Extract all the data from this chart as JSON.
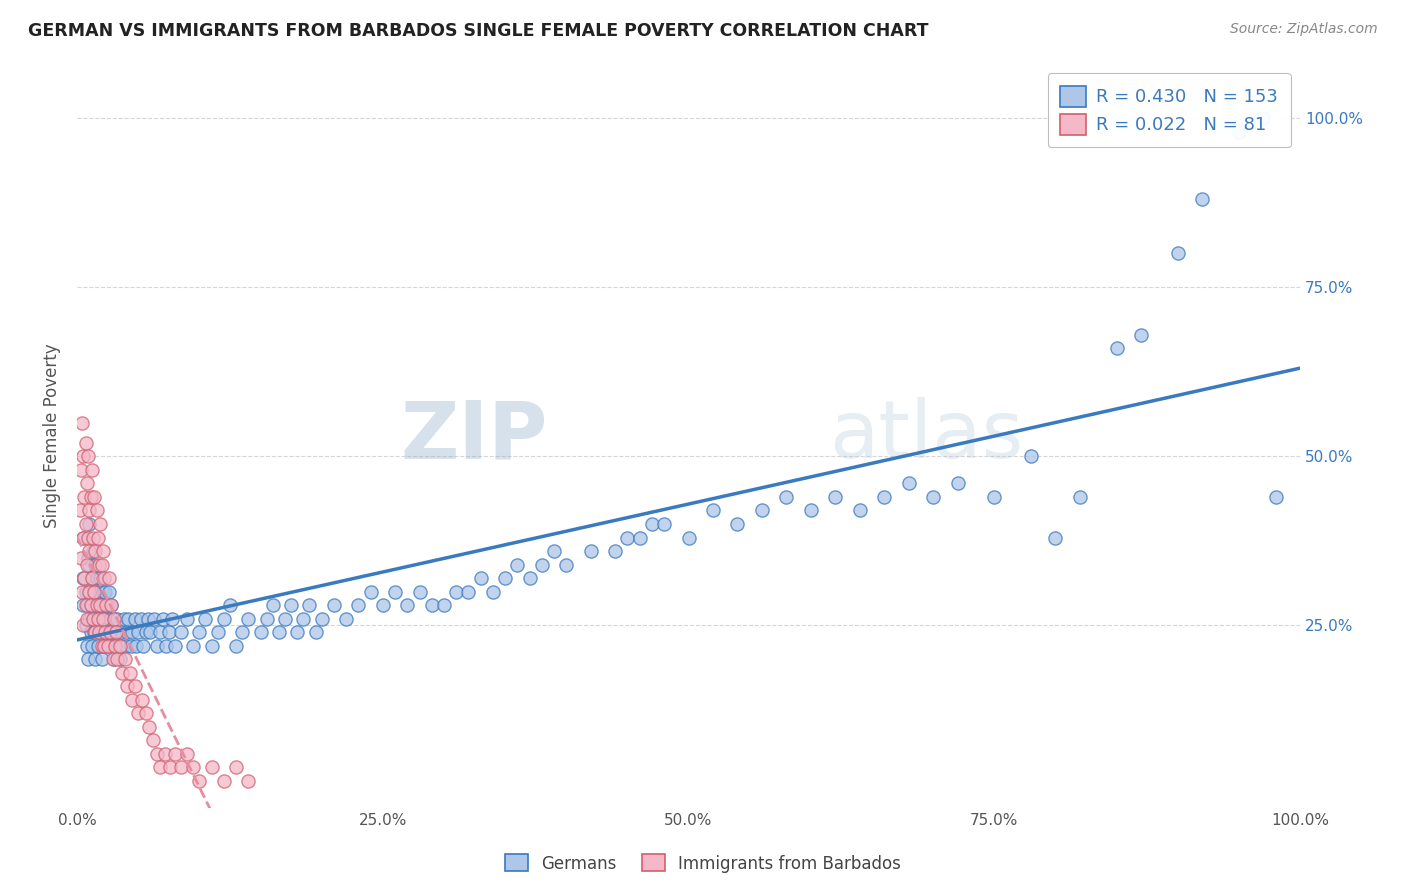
{
  "title": "GERMAN VS IMMIGRANTS FROM BARBADOS SINGLE FEMALE POVERTY CORRELATION CHART",
  "source": "Source: ZipAtlas.com",
  "ylabel": "Single Female Poverty",
  "xlim": [
    0.0,
    1.0
  ],
  "ylim": [
    -0.02,
    1.08
  ],
  "xtick_labels": [
    "0.0%",
    "25.0%",
    "50.0%",
    "75.0%",
    "100.0%"
  ],
  "xtick_positions": [
    0.0,
    0.25,
    0.5,
    0.75,
    1.0
  ],
  "ytick_labels": [
    "25.0%",
    "50.0%",
    "75.0%",
    "100.0%"
  ],
  "ytick_positions": [
    0.25,
    0.5,
    0.75,
    1.0
  ],
  "german_R": 0.43,
  "german_N": 153,
  "barbados_R": 0.022,
  "barbados_N": 81,
  "german_color": "#aec6e8",
  "barbados_color": "#f5b8c8",
  "german_line_color": "#3a7abf",
  "barbados_line_color": "#e88ca0",
  "watermark_zip": "ZIP",
  "watermark_atlas": "atlas",
  "legend_label_german": "Germans",
  "legend_label_barbados": "Immigrants from Barbados",
  "german_x": [
    0.005,
    0.005,
    0.005,
    0.007,
    0.007,
    0.008,
    0.008,
    0.009,
    0.009,
    0.01,
    0.01,
    0.01,
    0.01,
    0.011,
    0.011,
    0.012,
    0.012,
    0.013,
    0.013,
    0.014,
    0.014,
    0.015,
    0.015,
    0.015,
    0.016,
    0.016,
    0.017,
    0.017,
    0.018,
    0.018,
    0.019,
    0.019,
    0.02,
    0.02,
    0.02,
    0.021,
    0.021,
    0.022,
    0.022,
    0.023,
    0.023,
    0.024,
    0.025,
    0.025,
    0.026,
    0.026,
    0.027,
    0.028,
    0.028,
    0.029,
    0.03,
    0.03,
    0.031,
    0.032,
    0.033,
    0.034,
    0.035,
    0.036,
    0.037,
    0.038,
    0.04,
    0.041,
    0.042,
    0.044,
    0.045,
    0.047,
    0.048,
    0.05,
    0.052,
    0.054,
    0.056,
    0.058,
    0.06,
    0.063,
    0.065,
    0.068,
    0.07,
    0.073,
    0.075,
    0.078,
    0.08,
    0.085,
    0.09,
    0.095,
    0.1,
    0.105,
    0.11,
    0.115,
    0.12,
    0.125,
    0.13,
    0.135,
    0.14,
    0.15,
    0.155,
    0.16,
    0.165,
    0.17,
    0.175,
    0.18,
    0.185,
    0.19,
    0.195,
    0.2,
    0.21,
    0.22,
    0.23,
    0.24,
    0.25,
    0.26,
    0.27,
    0.28,
    0.29,
    0.3,
    0.31,
    0.32,
    0.33,
    0.34,
    0.35,
    0.36,
    0.37,
    0.38,
    0.39,
    0.4,
    0.42,
    0.44,
    0.45,
    0.46,
    0.47,
    0.48,
    0.5,
    0.52,
    0.54,
    0.56,
    0.58,
    0.6,
    0.62,
    0.64,
    0.66,
    0.68,
    0.7,
    0.72,
    0.75,
    0.78,
    0.8,
    0.82,
    0.85,
    0.87,
    0.9,
    0.92,
    0.95,
    0.97,
    0.98
  ],
  "german_y": [
    0.28,
    0.32,
    0.38,
    0.25,
    0.3,
    0.22,
    0.28,
    0.35,
    0.2,
    0.26,
    0.3,
    0.34,
    0.4,
    0.24,
    0.28,
    0.22,
    0.32,
    0.26,
    0.36,
    0.24,
    0.3,
    0.2,
    0.28,
    0.34,
    0.26,
    0.32,
    0.22,
    0.28,
    0.24,
    0.3,
    0.26,
    0.32,
    0.2,
    0.28,
    0.24,
    0.26,
    0.3,
    0.22,
    0.28,
    0.24,
    0.3,
    0.26,
    0.22,
    0.28,
    0.24,
    0.3,
    0.26,
    0.22,
    0.28,
    0.24,
    0.2,
    0.26,
    0.22,
    0.24,
    0.26,
    0.22,
    0.2,
    0.24,
    0.22,
    0.26,
    0.22,
    0.24,
    0.26,
    0.22,
    0.24,
    0.26,
    0.22,
    0.24,
    0.26,
    0.22,
    0.24,
    0.26,
    0.24,
    0.26,
    0.22,
    0.24,
    0.26,
    0.22,
    0.24,
    0.26,
    0.22,
    0.24,
    0.26,
    0.22,
    0.24,
    0.26,
    0.22,
    0.24,
    0.26,
    0.28,
    0.22,
    0.24,
    0.26,
    0.24,
    0.26,
    0.28,
    0.24,
    0.26,
    0.28,
    0.24,
    0.26,
    0.28,
    0.24,
    0.26,
    0.28,
    0.26,
    0.28,
    0.3,
    0.28,
    0.3,
    0.28,
    0.3,
    0.28,
    0.28,
    0.3,
    0.3,
    0.32,
    0.3,
    0.32,
    0.34,
    0.32,
    0.34,
    0.36,
    0.34,
    0.36,
    0.36,
    0.38,
    0.38,
    0.4,
    0.4,
    0.38,
    0.42,
    0.4,
    0.42,
    0.44,
    0.42,
    0.44,
    0.42,
    0.44,
    0.46,
    0.44,
    0.46,
    0.44,
    0.5,
    0.38,
    0.44,
    0.66,
    0.68,
    0.8,
    0.88,
    0.98,
    1.0,
    0.44
  ],
  "barbados_x": [
    0.002,
    0.003,
    0.003,
    0.004,
    0.004,
    0.005,
    0.005,
    0.005,
    0.006,
    0.006,
    0.007,
    0.007,
    0.007,
    0.008,
    0.008,
    0.008,
    0.009,
    0.009,
    0.01,
    0.01,
    0.01,
    0.011,
    0.011,
    0.012,
    0.012,
    0.013,
    0.013,
    0.014,
    0.014,
    0.015,
    0.015,
    0.016,
    0.016,
    0.017,
    0.017,
    0.018,
    0.018,
    0.019,
    0.019,
    0.02,
    0.02,
    0.021,
    0.021,
    0.022,
    0.022,
    0.023,
    0.024,
    0.025,
    0.026,
    0.027,
    0.028,
    0.029,
    0.03,
    0.031,
    0.032,
    0.033,
    0.035,
    0.037,
    0.039,
    0.041,
    0.043,
    0.045,
    0.047,
    0.05,
    0.053,
    0.056,
    0.059,
    0.062,
    0.065,
    0.068,
    0.072,
    0.076,
    0.08,
    0.085,
    0.09,
    0.095,
    0.1,
    0.11,
    0.12,
    0.13,
    0.14
  ],
  "barbados_y": [
    0.42,
    0.35,
    0.48,
    0.3,
    0.55,
    0.25,
    0.38,
    0.5,
    0.32,
    0.44,
    0.28,
    0.4,
    0.52,
    0.34,
    0.46,
    0.26,
    0.38,
    0.5,
    0.3,
    0.42,
    0.36,
    0.28,
    0.44,
    0.32,
    0.48,
    0.26,
    0.38,
    0.3,
    0.44,
    0.24,
    0.36,
    0.28,
    0.42,
    0.26,
    0.38,
    0.24,
    0.34,
    0.28,
    0.4,
    0.22,
    0.34,
    0.26,
    0.36,
    0.22,
    0.32,
    0.24,
    0.28,
    0.22,
    0.32,
    0.24,
    0.28,
    0.2,
    0.26,
    0.22,
    0.24,
    0.2,
    0.22,
    0.18,
    0.2,
    0.16,
    0.18,
    0.14,
    0.16,
    0.12,
    0.14,
    0.12,
    0.1,
    0.08,
    0.06,
    0.04,
    0.06,
    0.04,
    0.06,
    0.04,
    0.06,
    0.04,
    0.02,
    0.04,
    0.02,
    0.04,
    0.02
  ]
}
